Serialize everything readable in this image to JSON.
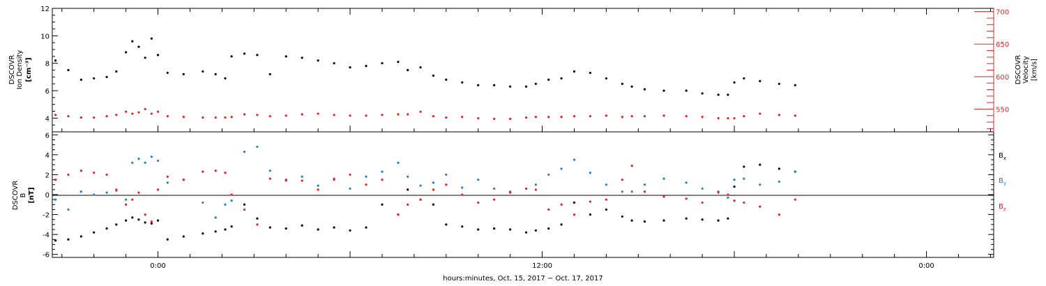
{
  "colors": {
    "black": "#000000",
    "red": "#e8201e",
    "blue": "#1f7fd0"
  },
  "chart_data": [
    {
      "type": "scatter",
      "panel": "plasma",
      "ylabel_left": [
        "DSCOVR",
        "Ion Density",
        "[cm⁻³]"
      ],
      "ylabel_right": [
        "DSCOVR",
        "Velocity",
        "[km/s]"
      ],
      "ylim_left": [
        3,
        12
      ],
      "ylim_right": [
        515,
        705
      ],
      "yticks_left": [
        4,
        6,
        8,
        10,
        12
      ],
      "yticks_right": [
        550,
        600,
        650,
        700
      ],
      "x_unit": "hours relative to Oct. 16, 2017 00:00",
      "xlim": [
        -3.3,
        26.1
      ],
      "series": [
        {
          "axis": "left",
          "color": "#000000",
          "x": [
            -3.2,
            -2.8,
            -2.4,
            -2.0,
            -1.6,
            -1.3,
            -1.0,
            -0.8,
            -0.6,
            -0.4,
            -0.2,
            0.0,
            0.3,
            0.8,
            1.4,
            1.8,
            2.1,
            2.3,
            2.7,
            3.1,
            3.5,
            4.0,
            4.5,
            5.0,
            5.5,
            6.0,
            6.5,
            7.0,
            7.5,
            7.8,
            8.2,
            8.6,
            9.0,
            9.5,
            10.0,
            10.5,
            11.0,
            11.5,
            11.8,
            12.2,
            12.6,
            13.0,
            13.5,
            14.0,
            14.5,
            14.8,
            15.2,
            15.8,
            16.5,
            17.0,
            17.5,
            17.8,
            18.0,
            18.3,
            18.8,
            19.4,
            19.9
          ],
          "y": [
            8.2,
            7.5,
            6.8,
            6.9,
            7.0,
            7.4,
            8.8,
            9.6,
            9.2,
            8.4,
            9.8,
            8.6,
            7.3,
            7.2,
            7.4,
            7.2,
            6.9,
            8.5,
            8.7,
            8.6,
            7.2,
            8.5,
            8.4,
            8.2,
            8.0,
            7.7,
            7.8,
            8.0,
            8.1,
            7.5,
            7.7,
            7.1,
            6.8,
            6.6,
            6.4,
            6.4,
            6.3,
            6.3,
            6.5,
            6.8,
            6.9,
            7.4,
            7.3,
            6.9,
            6.5,
            6.3,
            6.1,
            6.0,
            6.0,
            5.8,
            5.7,
            5.7,
            6.6,
            6.9,
            6.7,
            6.5,
            6.4
          ]
        },
        {
          "axis": "right",
          "color": "#e8201e",
          "x": [
            -3.2,
            -2.8,
            -2.4,
            -2.0,
            -1.6,
            -1.3,
            -1.0,
            -0.8,
            -0.6,
            -0.4,
            -0.2,
            0.0,
            0.3,
            0.8,
            1.4,
            1.8,
            2.1,
            2.3,
            2.7,
            3.1,
            3.5,
            4.0,
            4.5,
            5.0,
            5.5,
            6.0,
            6.5,
            7.0,
            7.5,
            7.8,
            8.2,
            8.6,
            9.0,
            9.5,
            10.0,
            10.5,
            11.0,
            11.5,
            11.8,
            12.2,
            12.6,
            13.0,
            13.5,
            14.0,
            14.5,
            14.8,
            15.2,
            15.8,
            16.5,
            17.0,
            17.5,
            17.8,
            18.0,
            18.3,
            18.8,
            19.4,
            19.9
          ],
          "y": [
            541,
            539,
            537,
            537,
            539,
            541,
            546,
            543,
            545,
            550,
            543,
            546,
            539,
            538,
            537,
            537,
            537,
            538,
            542,
            541,
            539,
            540,
            542,
            543,
            541,
            540,
            540,
            541,
            542,
            542,
            546,
            539,
            537,
            538,
            536,
            535,
            535,
            537,
            538,
            538,
            538,
            539,
            539,
            540,
            538,
            539,
            539,
            540,
            539,
            538,
            536,
            536,
            536,
            539,
            543,
            541,
            540
          ]
        }
      ]
    },
    {
      "type": "scatter",
      "panel": "magnetic field",
      "ylabel": [
        "DSCOVR",
        "B",
        "[nT]"
      ],
      "ylim": [
        -6.3,
        6.3
      ],
      "yticks": [
        -6,
        -4,
        -2,
        0,
        2,
        4,
        6
      ],
      "x_unit": "hours relative to Oct. 16, 2017 00:00",
      "xlim": [
        -3.3,
        26.1
      ],
      "xticks": [
        0,
        12,
        24
      ],
      "xticklabels": [
        "0:00",
        "12:00",
        "0:00"
      ],
      "zero_line": true,
      "series": [
        {
          "name_main": "B",
          "name_sub": "x",
          "color": "#000000",
          "x": [
            -3.2,
            -2.8,
            -2.4,
            -2.0,
            -1.6,
            -1.3,
            -1.0,
            -0.8,
            -0.6,
            -0.4,
            -0.2,
            0.0,
            0.3,
            0.8,
            1.4,
            1.8,
            2.1,
            2.3,
            2.7,
            3.1,
            3.5,
            4.0,
            4.5,
            5.0,
            5.5,
            6.0,
            6.5,
            7.0,
            7.5,
            7.8,
            8.2,
            8.6,
            9.0,
            9.5,
            10.0,
            10.5,
            11.0,
            11.5,
            11.8,
            12.2,
            12.6,
            13.0,
            13.5,
            14.0,
            14.5,
            14.8,
            15.2,
            15.8,
            16.5,
            17.0,
            17.5,
            17.8,
            18.0,
            18.3,
            18.8,
            19.4,
            19.9
          ],
          "y": [
            -4.6,
            -4.5,
            -4.2,
            -3.8,
            -3.4,
            -3.0,
            -2.6,
            -2.3,
            -2.5,
            -2.8,
            -2.9,
            -2.6,
            -4.5,
            -4.2,
            -3.9,
            -3.7,
            -3.5,
            -3.2,
            -1.0,
            -2.4,
            -3.3,
            -3.4,
            -3.1,
            -3.5,
            -3.3,
            -3.6,
            -3.3,
            -1.0,
            -2.0,
            0.5,
            -0.5,
            -1.0,
            -3.0,
            -3.2,
            -3.5,
            -3.4,
            -3.5,
            -3.8,
            -3.6,
            -3.4,
            -3.0,
            -0.8,
            -2.0,
            -1.5,
            -2.2,
            -2.6,
            -2.7,
            -2.6,
            -2.4,
            -2.5,
            -2.6,
            -2.4,
            0.8,
            2.8,
            3.0,
            2.6,
            2.3
          ]
        },
        {
          "name_main": "B",
          "name_sub": "y",
          "color": "#1f7fd0",
          "x": [
            -3.2,
            -2.8,
            -2.4,
            -2.0,
            -1.6,
            -1.3,
            -1.0,
            -0.8,
            -0.6,
            -0.4,
            -0.2,
            0.0,
            0.3,
            0.8,
            1.4,
            1.8,
            2.1,
            2.3,
            2.7,
            3.1,
            3.5,
            4.0,
            4.5,
            5.0,
            5.5,
            6.0,
            6.5,
            7.0,
            7.5,
            7.8,
            8.2,
            8.6,
            9.0,
            9.5,
            10.0,
            10.5,
            11.0,
            11.5,
            11.8,
            12.2,
            12.6,
            13.0,
            13.5,
            14.0,
            14.5,
            14.8,
            15.2,
            15.8,
            16.5,
            17.0,
            17.5,
            17.8,
            18.0,
            18.3,
            18.8,
            19.4,
            19.9
          ],
          "y": [
            -0.5,
            -1.5,
            0.3,
            0.0,
            0.2,
            0.4,
            -0.5,
            3.2,
            3.6,
            3.2,
            3.8,
            3.4,
            1.2,
            1.5,
            -0.8,
            -2.3,
            -1.0,
            -0.6,
            4.3,
            4.8,
            2.4,
            1.4,
            1.8,
            0.9,
            1.6,
            0.6,
            1.8,
            2.3,
            3.2,
            1.8,
            0.9,
            1.2,
            2.0,
            0.7,
            1.5,
            0.6,
            0.3,
            0.6,
            1.0,
            2.0,
            2.6,
            3.5,
            2.2,
            1.0,
            0.3,
            0.3,
            1.0,
            1.6,
            1.2,
            0.6,
            0.2,
            -0.3,
            1.5,
            1.6,
            1.0,
            1.3,
            2.3
          ]
        },
        {
          "name_main": "B",
          "name_sub": "z",
          "color": "#e8201e",
          "x": [
            -3.2,
            -2.8,
            -2.4,
            -2.0,
            -1.6,
            -1.3,
            -1.0,
            -0.8,
            -0.6,
            -0.4,
            -0.2,
            0.0,
            0.3,
            0.8,
            1.4,
            1.8,
            2.1,
            2.3,
            2.7,
            3.1,
            3.5,
            4.0,
            4.5,
            5.0,
            5.5,
            6.0,
            6.5,
            7.0,
            7.5,
            7.8,
            8.2,
            8.6,
            9.0,
            9.5,
            10.0,
            10.5,
            11.0,
            11.5,
            11.8,
            12.2,
            12.6,
            13.0,
            13.5,
            14.0,
            14.5,
            14.8,
            15.2,
            15.8,
            16.5,
            17.0,
            17.5,
            17.8,
            18.0,
            18.3,
            18.8,
            19.4,
            19.9
          ],
          "y": [
            1.5,
            2.0,
            2.4,
            2.2,
            2.0,
            0.5,
            -1.0,
            -0.5,
            0.2,
            -2.0,
            -2.7,
            0.5,
            1.8,
            1.5,
            2.3,
            2.4,
            2.2,
            0.0,
            -1.5,
            -3.0,
            1.6,
            1.5,
            1.4,
            0.5,
            1.5,
            2.0,
            1.0,
            1.5,
            -2.0,
            -1.0,
            -0.5,
            0.5,
            1.0,
            0.0,
            -0.8,
            -0.5,
            0.2,
            0.6,
            0.5,
            -1.5,
            -1.0,
            -2.0,
            -0.7,
            -0.5,
            1.5,
            2.9,
            0.3,
            -0.2,
            -0.4,
            -0.8,
            0.3,
            0.0,
            -0.6,
            -0.8,
            -1.2,
            -2.0,
            -0.5
          ]
        }
      ]
    }
  ],
  "xlabel": "hours:minutes, Oct. 15, 2017 − Oct. 17, 2017"
}
